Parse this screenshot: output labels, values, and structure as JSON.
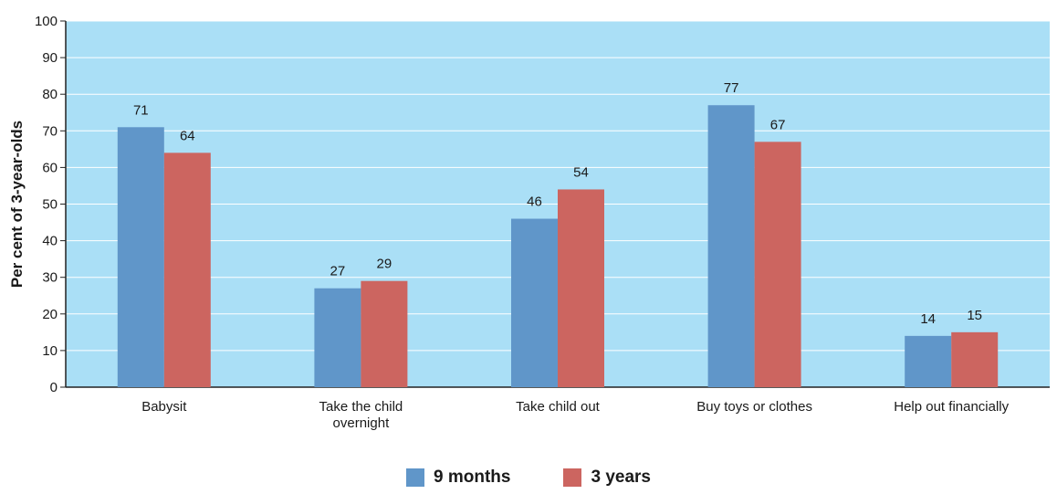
{
  "chart_data": {
    "type": "bar",
    "categories": [
      "Babysit",
      "Take the child overnight",
      "Take child out",
      "Buy toys or clothes",
      "Help out financially"
    ],
    "category_lines": [
      [
        "Babysit"
      ],
      [
        "Take the child",
        "overnight"
      ],
      [
        "Take child out"
      ],
      [
        "Buy toys or clothes"
      ],
      [
        "Help out financially"
      ]
    ],
    "series": [
      {
        "name": "9 months",
        "values": [
          71,
          27,
          46,
          77,
          14
        ],
        "color": "#6096c9"
      },
      {
        "name": "3 years",
        "values": [
          64,
          29,
          54,
          67,
          15
        ],
        "color": "#cc6560"
      }
    ],
    "data_labels": [
      [
        "71",
        "27",
        "46",
        "77",
        "14"
      ],
      [
        "64",
        "29",
        "54",
        "67",
        "15"
      ]
    ],
    "title": "",
    "xlabel": "",
    "ylabel": "Per cent of 3-year-olds",
    "ylim": [
      0,
      100
    ],
    "yticks": [
      0,
      10,
      20,
      30,
      40,
      50,
      60,
      70,
      80,
      90,
      100
    ],
    "grid": true,
    "legend_position": "bottom-center",
    "plot_background": "#aadff6",
    "gridline_color": "#ffffff"
  }
}
